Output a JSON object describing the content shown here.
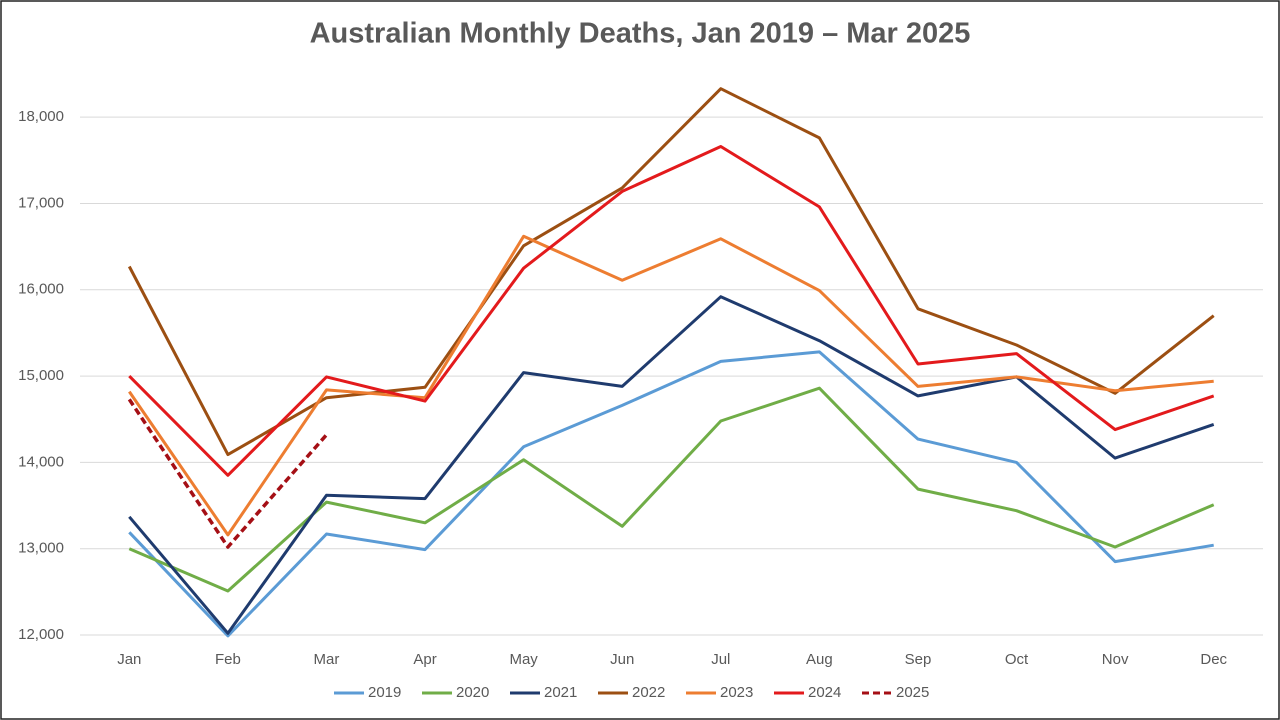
{
  "chart_data": {
    "type": "line",
    "title": "Australian Monthly Deaths, Jan 2019 – Mar 2025",
    "categories": [
      "Jan",
      "Feb",
      "Mar",
      "Apr",
      "May",
      "Jun",
      "Jul",
      "Aug",
      "Sep",
      "Oct",
      "Nov",
      "Dec"
    ],
    "ylim": [
      12000,
      18500
    ],
    "yticks": [
      {
        "value": 12000,
        "label": "12,000"
      },
      {
        "value": 13000,
        "label": "13,000"
      },
      {
        "value": 14000,
        "label": "14,000"
      },
      {
        "value": 15000,
        "label": "15,000"
      },
      {
        "value": 16000,
        "label": "16,000"
      },
      {
        "value": 17000,
        "label": "17,000"
      },
      {
        "value": 18000,
        "label": "18,000"
      }
    ],
    "grid": true,
    "legend": "bottom",
    "series": [
      {
        "name": "2019",
        "color": "#5b9bd5",
        "values": [
          13190,
          11990,
          13170,
          12990,
          14180,
          14660,
          15170,
          15280,
          14270,
          14000,
          12850,
          13040
        ]
      },
      {
        "name": "2020",
        "color": "#70ad47",
        "values": [
          13000,
          12510,
          13540,
          13300,
          14030,
          13260,
          14480,
          14860,
          13690,
          13440,
          13020,
          13510
        ]
      },
      {
        "name": "2021",
        "color": "#1f3b6e",
        "values": [
          13370,
          12020,
          13620,
          13580,
          15040,
          14880,
          15920,
          15410,
          14770,
          14990,
          14050,
          14440
        ]
      },
      {
        "name": "2022",
        "color": "#9c4f12",
        "values": [
          16270,
          14090,
          14750,
          14870,
          16510,
          17180,
          18330,
          17760,
          15780,
          15360,
          14800,
          15700
        ]
      },
      {
        "name": "2023",
        "color": "#ed7d31",
        "values": [
          14820,
          13160,
          14840,
          14750,
          16620,
          16110,
          16590,
          15990,
          14880,
          14990,
          14830,
          14940
        ]
      },
      {
        "name": "2024",
        "color": "#e31a1c",
        "values": [
          15000,
          13850,
          14990,
          14710,
          16250,
          17140,
          17660,
          16960,
          15140,
          15260,
          14380,
          14770
        ]
      },
      {
        "name": "2025",
        "color": "#a50f15",
        "dashed": true,
        "values": [
          14730,
          13020,
          14320,
          null,
          null,
          null,
          null,
          null,
          null,
          null,
          null,
          null
        ]
      }
    ]
  }
}
